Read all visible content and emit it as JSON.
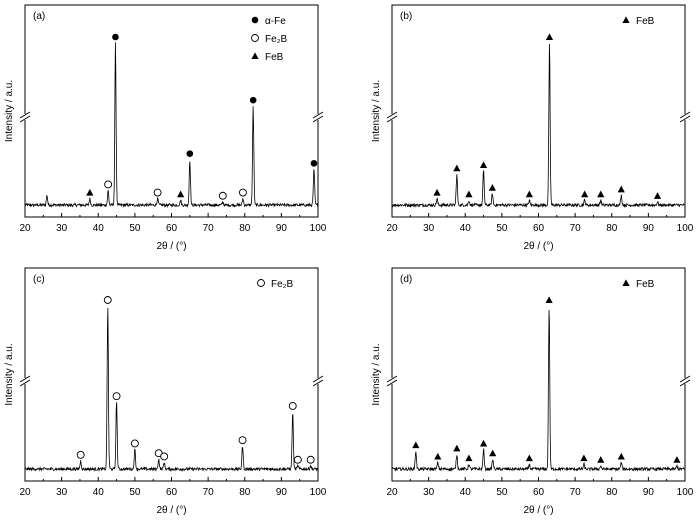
{
  "chart_data": [
    {
      "panel_label": "(a)",
      "type": "line",
      "xlabel": "2θ / (°)",
      "ylabel": "Intensity / a.u.",
      "xlim": [
        20,
        100
      ],
      "xticks": [
        20,
        30,
        40,
        50,
        60,
        70,
        80,
        90,
        100
      ],
      "ylim": [
        0,
        1
      ],
      "y_axis_break": true,
      "grid": false,
      "legend": {
        "placement": "top-right",
        "entries": [
          {
            "marker": "filled-circle",
            "label": "α-Fe"
          },
          {
            "marker": "open-circle",
            "label": "Fe₂B"
          },
          {
            "marker": "filled-triangle",
            "label": "FeB"
          }
        ]
      },
      "peaks": [
        {
          "x": 26.0,
          "h": 0.06
        },
        {
          "x": 37.7,
          "h": 0.04,
          "marker": "filled-triangle"
        },
        {
          "x": 42.7,
          "h": 0.09,
          "marker": "open-circle"
        },
        {
          "x": 44.7,
          "h": 1.0,
          "marker": "filled-circle"
        },
        {
          "x": 56.2,
          "h": 0.04,
          "marker": "open-circle"
        },
        {
          "x": 62.5,
          "h": 0.03,
          "marker": "filled-triangle"
        },
        {
          "x": 65.0,
          "h": 0.28,
          "marker": "filled-circle"
        },
        {
          "x": 74.0,
          "h": 0.02,
          "marker": "open-circle"
        },
        {
          "x": 79.5,
          "h": 0.04,
          "marker": "open-circle"
        },
        {
          "x": 82.3,
          "h": 0.61,
          "marker": "filled-circle"
        },
        {
          "x": 98.9,
          "h": 0.22,
          "marker": "filled-circle"
        }
      ]
    },
    {
      "panel_label": "(b)",
      "type": "line",
      "xlabel": "2θ / (°)",
      "ylabel": "Intensity / a.u.",
      "xlim": [
        20,
        100
      ],
      "xticks": [
        20,
        30,
        40,
        50,
        60,
        70,
        80,
        90,
        100
      ],
      "ylim": [
        0,
        1
      ],
      "y_axis_break": true,
      "grid": false,
      "legend": {
        "placement": "top-right",
        "entries": [
          {
            "marker": "filled-triangle",
            "label": "FeB"
          }
        ]
      },
      "peaks": [
        {
          "x": 32.3,
          "h": 0.04,
          "marker": "filled-triangle"
        },
        {
          "x": 37.7,
          "h": 0.19,
          "marker": "filled-triangle"
        },
        {
          "x": 41.0,
          "h": 0.03,
          "marker": "filled-triangle"
        },
        {
          "x": 45.0,
          "h": 0.21,
          "marker": "filled-triangle"
        },
        {
          "x": 47.4,
          "h": 0.07,
          "marker": "filled-triangle"
        },
        {
          "x": 57.5,
          "h": 0.03,
          "marker": "filled-triangle"
        },
        {
          "x": 63.0,
          "h": 1.0,
          "marker": "filled-triangle"
        },
        {
          "x": 72.6,
          "h": 0.03,
          "marker": "filled-triangle"
        },
        {
          "x": 77.0,
          "h": 0.03,
          "marker": "filled-triangle"
        },
        {
          "x": 82.6,
          "h": 0.06,
          "marker": "filled-triangle"
        },
        {
          "x": 92.5,
          "h": 0.02,
          "marker": "filled-triangle"
        }
      ]
    },
    {
      "panel_label": "(c)",
      "type": "line",
      "xlabel": "2θ / (°)",
      "ylabel": "Intensity / a.u.",
      "xlim": [
        20,
        100
      ],
      "xticks": [
        20,
        30,
        40,
        50,
        60,
        70,
        80,
        90,
        100
      ],
      "ylim": [
        0,
        1
      ],
      "y_axis_break": true,
      "grid": false,
      "legend": {
        "placement": "top-right",
        "entries": [
          {
            "marker": "open-circle",
            "label": "Fe₂B"
          }
        ]
      },
      "peaks": [
        {
          "x": 35.2,
          "h": 0.05,
          "marker": "open-circle"
        },
        {
          "x": 42.6,
          "h": 1.0,
          "marker": "open-circle"
        },
        {
          "x": 45.0,
          "h": 0.41,
          "marker": "open-circle"
        },
        {
          "x": 50.0,
          "h": 0.12,
          "marker": "open-circle"
        },
        {
          "x": 56.5,
          "h": 0.06,
          "marker": "open-circle"
        },
        {
          "x": 58.0,
          "h": 0.04,
          "marker": "open-circle"
        },
        {
          "x": 79.4,
          "h": 0.14,
          "marker": "open-circle"
        },
        {
          "x": 93.1,
          "h": 0.35,
          "marker": "open-circle"
        },
        {
          "x": 94.5,
          "h": 0.02,
          "marker": "open-circle"
        },
        {
          "x": 98.0,
          "h": 0.02,
          "marker": "open-circle"
        }
      ]
    },
    {
      "panel_label": "(d)",
      "type": "line",
      "xlabel": "2θ / (°)",
      "ylabel": "Intensity / a.u.",
      "xlim": [
        20,
        100
      ],
      "xticks": [
        20,
        30,
        40,
        50,
        60,
        70,
        80,
        90,
        100
      ],
      "ylim": [
        0,
        1
      ],
      "y_axis_break": true,
      "grid": false,
      "legend": {
        "placement": "top-right",
        "entries": [
          {
            "marker": "filled-triangle",
            "label": "FeB"
          }
        ]
      },
      "peaks": [
        {
          "x": 26.5,
          "h": 0.11,
          "marker": "filled-triangle"
        },
        {
          "x": 32.5,
          "h": 0.04,
          "marker": "filled-triangle"
        },
        {
          "x": 37.7,
          "h": 0.09,
          "marker": "filled-triangle"
        },
        {
          "x": 41.0,
          "h": 0.03,
          "marker": "filled-triangle"
        },
        {
          "x": 45.0,
          "h": 0.12,
          "marker": "filled-triangle"
        },
        {
          "x": 47.5,
          "h": 0.06,
          "marker": "filled-triangle"
        },
        {
          "x": 57.5,
          "h": 0.03,
          "marker": "filled-triangle"
        },
        {
          "x": 62.9,
          "h": 1.0,
          "marker": "filled-triangle"
        },
        {
          "x": 72.4,
          "h": 0.03,
          "marker": "filled-triangle"
        },
        {
          "x": 77.0,
          "h": 0.02,
          "marker": "filled-triangle"
        },
        {
          "x": 82.6,
          "h": 0.04,
          "marker": "filled-triangle"
        },
        {
          "x": 97.8,
          "h": 0.02,
          "marker": "filled-triangle"
        }
      ]
    }
  ]
}
